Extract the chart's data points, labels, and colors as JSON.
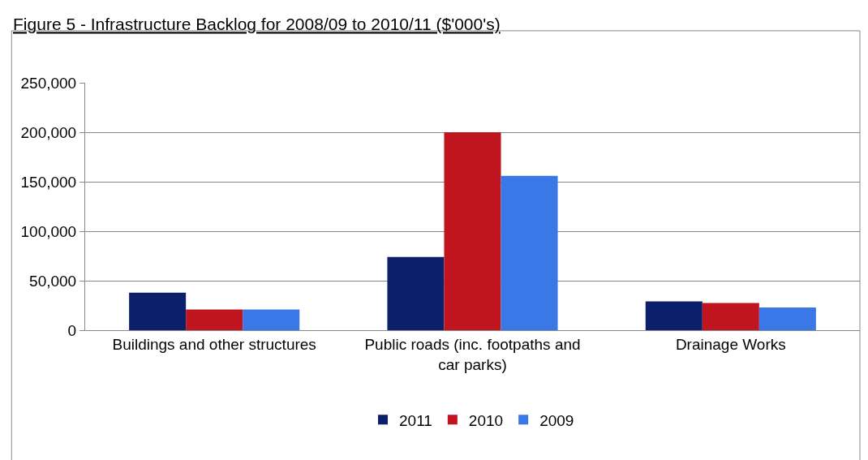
{
  "chart_data": {
    "type": "bar",
    "title": "Figure 5 - Infrastructure Backlog for 2008/09 to 2010/11 ($'000's)",
    "categories": [
      "Buildings and other structures",
      "Public roads (inc. footpaths and car parks)",
      "Drainage Works"
    ],
    "series": [
      {
        "name": "2011",
        "color": "#0b1f6b",
        "values": [
          38000,
          74000,
          29000
        ]
      },
      {
        "name": "2010",
        "color": "#c0141e",
        "values": [
          21000,
          200000,
          27500
        ]
      },
      {
        "name": "2009",
        "color": "#3a78e8",
        "values": [
          21000,
          156000,
          23000
        ]
      }
    ],
    "ylim": [
      0,
      250000
    ],
    "yticks": [
      {
        "value": 0,
        "label": "0"
      },
      {
        "value": 50000,
        "label": "50,000"
      },
      {
        "value": 100000,
        "label": "100,000"
      },
      {
        "value": 150000,
        "label": "150,000"
      },
      {
        "value": 200000,
        "label": "200,000"
      },
      {
        "value": 250000,
        "label": "250,000"
      }
    ],
    "grid": "y",
    "legend": "bottom"
  }
}
